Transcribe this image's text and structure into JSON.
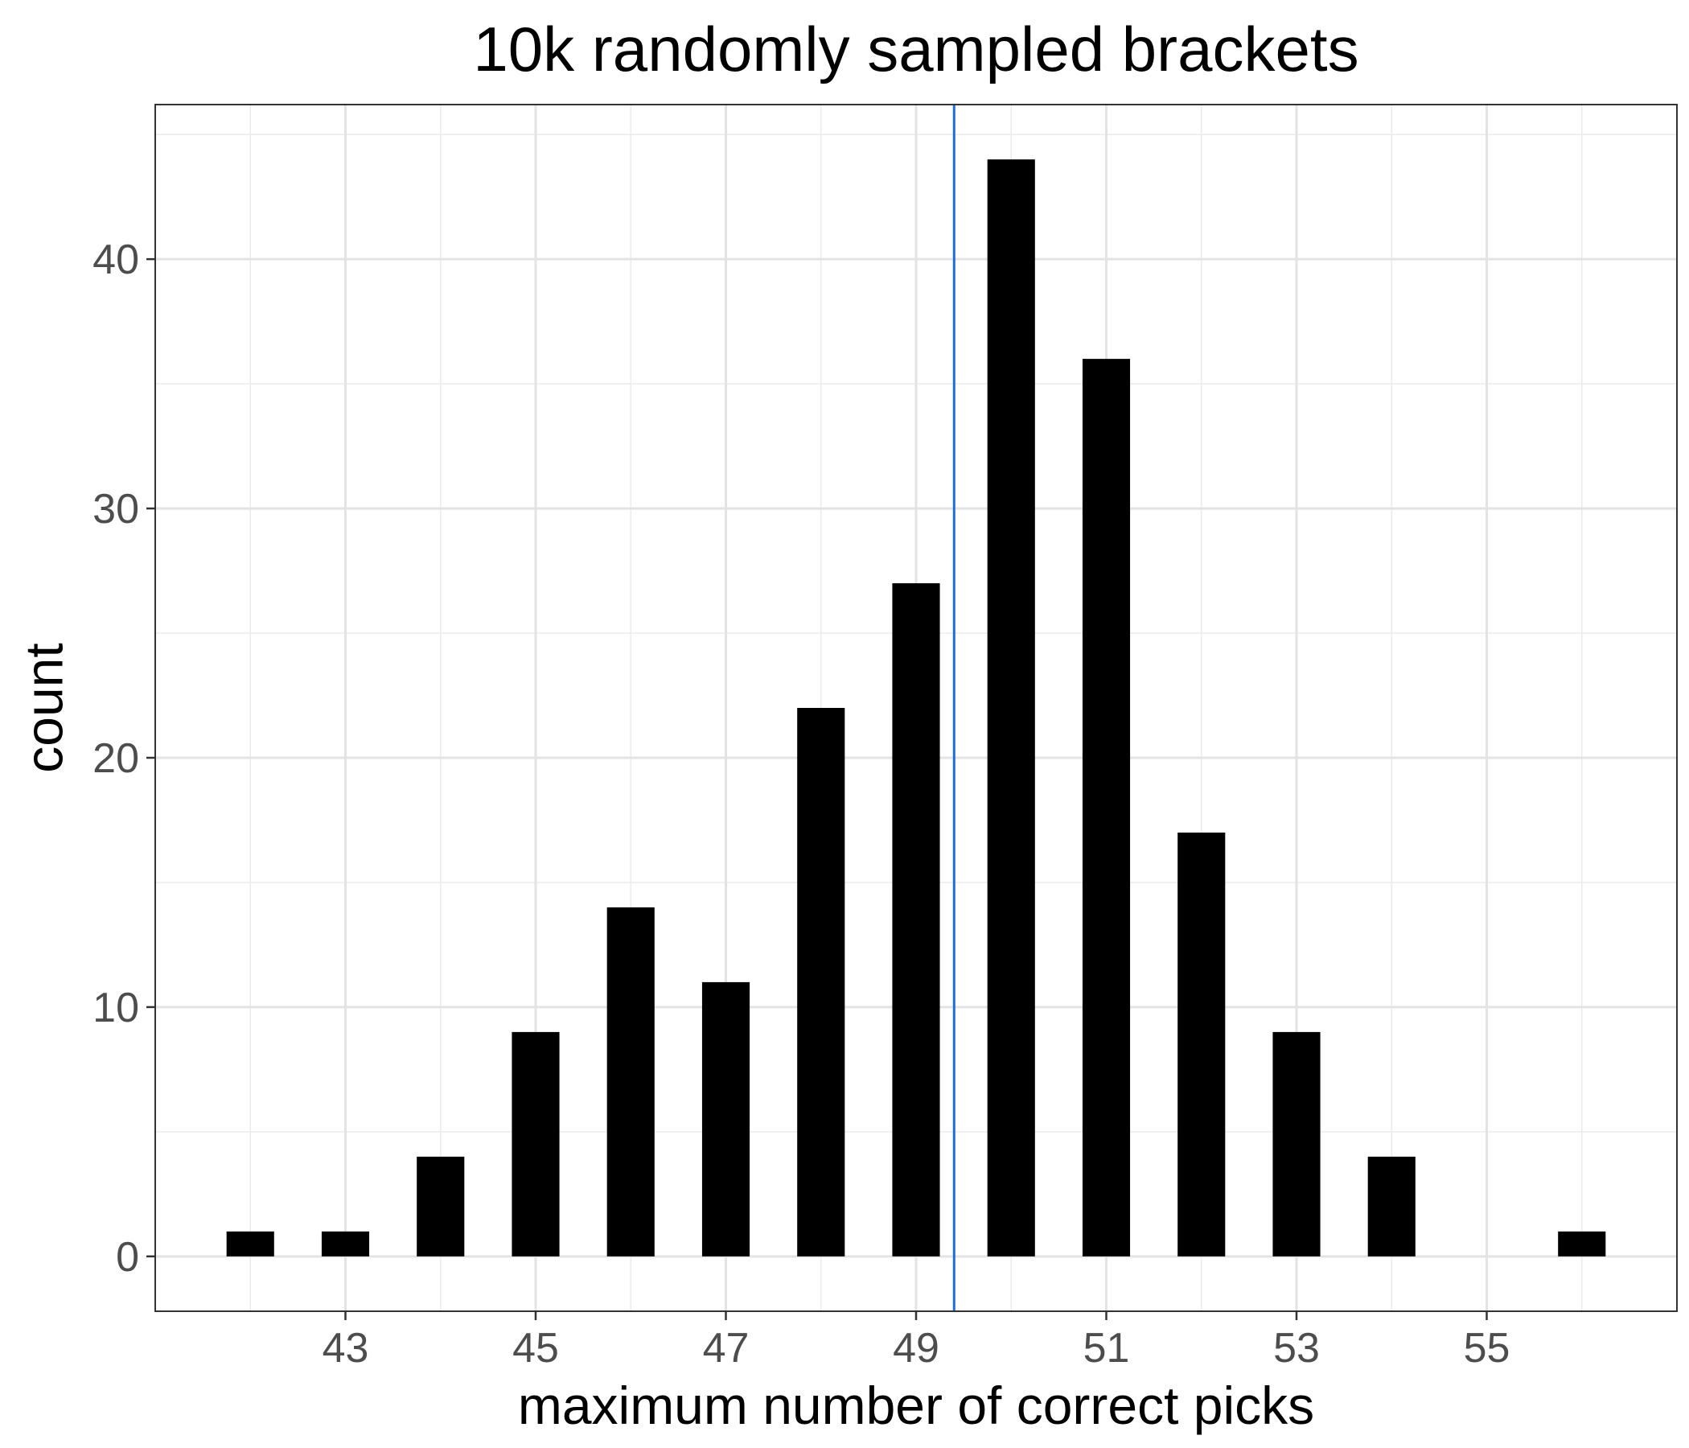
{
  "chart_data": {
    "type": "bar",
    "title": "10k randomly sampled brackets",
    "xlabel": "maximum number of correct picks",
    "ylabel": "count",
    "x": [
      42,
      43,
      44,
      45,
      46,
      47,
      48,
      49,
      50,
      51,
      52,
      53,
      54,
      56
    ],
    "values": [
      1,
      1,
      4,
      9,
      14,
      11,
      22,
      27,
      44,
      36,
      17,
      9,
      4,
      1
    ],
    "xlim": [
      41.0,
      57.0
    ],
    "ylim": [
      -2.2,
      46.2
    ],
    "x_ticks": [
      43,
      45,
      47,
      49,
      51,
      53,
      55
    ],
    "y_ticks": [
      0,
      10,
      20,
      30,
      40
    ],
    "reference_line": {
      "x": 49.4,
      "color": "#1a6fdf"
    },
    "bar_color": "#000000",
    "grid": true,
    "legend": "none"
  }
}
